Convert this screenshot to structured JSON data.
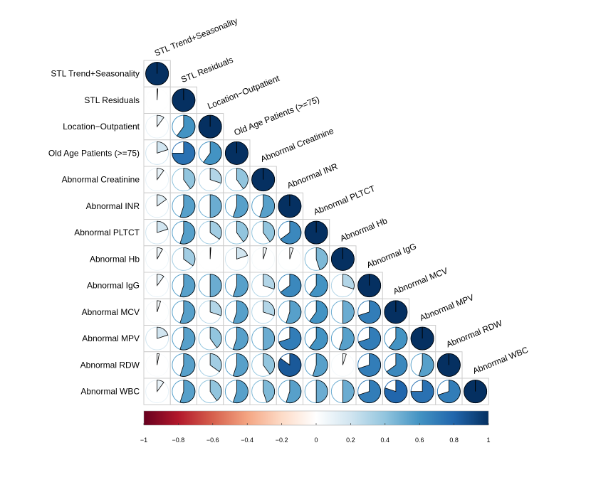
{
  "chart_data": {
    "type": "corrplot",
    "method": "pie",
    "variables": [
      "STL Trend+Seasonality",
      "STL Residuals",
      "Location−Outpatient",
      "Old Age Patients (>=75)",
      "Abnormal Creatinine",
      "Abnormal INR",
      "Abnormal PLTCT",
      "Abnormal Hb",
      "Abnormal IgG",
      "Abnormal MCV",
      "Abnormal MPV",
      "Abnormal RDW",
      "Abnormal WBC"
    ],
    "matrix": [
      [
        1
      ],
      [
        0.01,
        1
      ],
      [
        0.1,
        0.6,
        1
      ],
      [
        0.2,
        0.75,
        0.6,
        1
      ],
      [
        0.1,
        0.4,
        0.3,
        0.4,
        1
      ],
      [
        0.15,
        0.55,
        0.5,
        0.55,
        0.55,
        1
      ],
      [
        0.2,
        0.55,
        0.35,
        0.4,
        0.4,
        0.65,
        1
      ],
      [
        0.08,
        0.35,
        0.01,
        0.2,
        0.05,
        0.05,
        0.45,
        1
      ],
      [
        0.1,
        0.55,
        0.5,
        0.55,
        0.3,
        0.65,
        0.6,
        0.3,
        1
      ],
      [
        0.05,
        0.55,
        0.3,
        0.55,
        0.3,
        0.55,
        0.6,
        0.5,
        0.7,
        1
      ],
      [
        0.2,
        0.55,
        0.4,
        0.55,
        0.5,
        0.7,
        0.6,
        0.55,
        0.7,
        0.6,
        1
      ],
      [
        0.03,
        0.55,
        0.35,
        0.55,
        0.4,
        0.85,
        0.55,
        0.05,
        0.7,
        0.65,
        0.55,
        1
      ],
      [
        0.1,
        0.55,
        0.4,
        0.55,
        0.45,
        0.55,
        0.5,
        0.5,
        0.7,
        0.8,
        0.75,
        0.7,
        1
      ]
    ],
    "palette": [
      "#67001F",
      "#B2182B",
      "#D6604D",
      "#F4A582",
      "#FDDBC7",
      "#FFFFFF",
      "#D1E5F0",
      "#92C5DE",
      "#4393C3",
      "#2166AC",
      "#053061"
    ],
    "clim": [
      -1,
      1
    ],
    "cticks": [
      {
        "value": -1,
        "label": "−1"
      },
      {
        "value": -0.8,
        "label": "−0.8"
      },
      {
        "value": -0.6,
        "label": "−0.6"
      },
      {
        "value": -0.4,
        "label": "−0.4"
      },
      {
        "value": -0.2,
        "label": "−0.2"
      },
      0,
      0.2,
      0.4,
      0.6,
      0.8,
      1
    ]
  }
}
